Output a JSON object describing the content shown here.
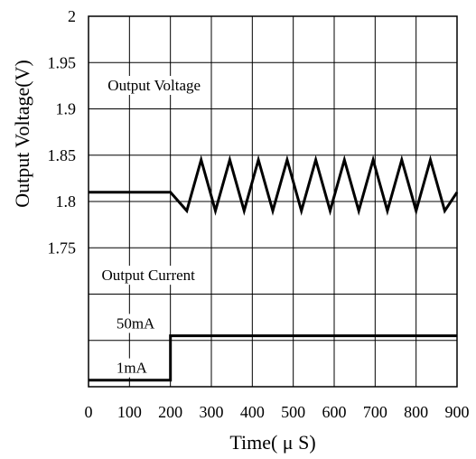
{
  "chart_data": {
    "type": "line",
    "title": "",
    "xlabel": "Time( μ S)",
    "ylabel": "Output Voltage(V)",
    "xlim": [
      0,
      900
    ],
    "x_ticks": [
      0,
      100,
      200,
      300,
      400,
      500,
      600,
      700,
      800,
      900
    ],
    "ylim": [
      1.6,
      2.0
    ],
    "y_ticks": [
      "2",
      "1.95",
      "1.9",
      "1.85",
      "1.8",
      "1.75"
    ],
    "grid": true,
    "annotations": {
      "voltage_label": "Output Voltage",
      "current_label": "Output Current",
      "high_current_label": "50mA",
      "low_current_label": "1mA"
    },
    "series": [
      {
        "x": [
          0,
          200,
          240,
          275,
          310,
          345,
          380,
          415,
          450,
          485,
          520,
          555,
          590,
          625,
          660,
          695,
          730,
          765,
          800,
          835,
          870,
          900
        ],
        "y": [
          1.81,
          1.81,
          1.79,
          1.845,
          1.79,
          1.845,
          1.79,
          1.845,
          1.79,
          1.845,
          1.79,
          1.845,
          1.79,
          1.845,
          1.79,
          1.845,
          1.79,
          1.845,
          1.79,
          1.845,
          1.79,
          1.81
        ]
      },
      {
        "x": [
          0,
          200,
          200,
          900
        ],
        "y": [
          1.607,
          1.607,
          1.655,
          1.655
        ]
      }
    ]
  }
}
